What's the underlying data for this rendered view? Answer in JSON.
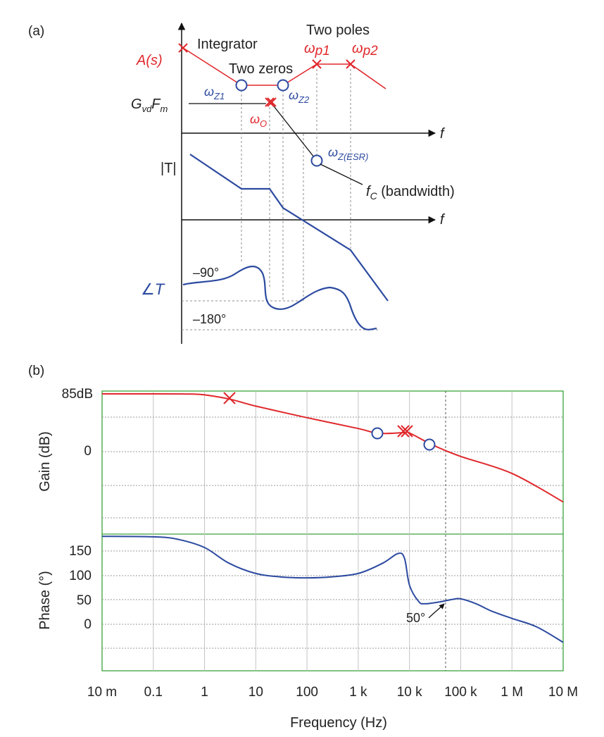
{
  "colors": {
    "red": "#e0282c",
    "blue": "#2c4aa0",
    "axis": "#111111",
    "grid": "#c8c8c8",
    "frame": "#3aa53a",
    "guide": "#888888"
  },
  "part_a": {
    "panel_label": "(a)",
    "a_s_label": "A(s)",
    "integrator_label": "Integrator",
    "two_zeros_label": "Two zeros",
    "two_poles_label": "Two poles",
    "wp1_sym": "ω",
    "wp1_sub": "p1",
    "wp2_sym": "ω",
    "wp2_sub": "p2",
    "wz1_sym": "ω",
    "wz1_sub": "Z1",
    "wz2_sym": "ω",
    "wz2_sub": "Z2",
    "wo_sym": "ω",
    "wo_sub": "O",
    "gvdfm_g": "G",
    "gvdfm_vd": "vd",
    "gvdfm_f": "F",
    "gvdfm_m": "m",
    "wesr_sym": "ω",
    "wesr_sub": "Z(ESR)",
    "fc_f": "f",
    "fc_sub": "C",
    "fc_rest": " (bandwidth)",
    "t_mag_label": "|T|",
    "t_phase_label": "∠T",
    "f_axis_label_1": "f",
    "f_axis_label_2": "f",
    "minus90_label": "–90°",
    "minus180_label": "–180°"
  },
  "part_b": {
    "panel_label": "(b)",
    "gain_axis_label": "Gain (dB)",
    "phase_axis_label": "Phase (°)",
    "x_axis_label": "Frequency (Hz)",
    "x_ticks": [
      "10 m",
      "0.1",
      "1",
      "10",
      "100",
      "1 k",
      "10 k",
      "100 k",
      "1 M",
      "10 M"
    ],
    "gain_ticks": [
      "85dB",
      "0"
    ],
    "phase_ticks": [
      "150",
      "100",
      "50",
      "0"
    ],
    "phase_margin_label": "50°"
  },
  "chart_data": [
    {
      "type": "line",
      "title": "",
      "xlabel": "Frequency (Hz)",
      "ylabel": "Gain (dB)",
      "x_scale": "log",
      "xlim": [
        0.01,
        10000000
      ],
      "series": [
        {
          "x": [
            0.01,
            0.1,
            0.5,
            1,
            3.2,
            10,
            100,
            1000,
            2500,
            8000,
            10000,
            30000,
            100000,
            1000000,
            10000000
          ],
          "values": [
            85,
            85,
            84.8,
            83.5,
            77,
            67,
            50,
            34,
            27,
            28,
            27.5,
            9,
            -7,
            -32,
            -74
          ]
        }
      ]
    },
    {
      "type": "line",
      "title": "",
      "xlabel": "Frequency (Hz)",
      "ylabel": "Phase (°)",
      "x_scale": "log",
      "xlim": [
        0.01,
        10000000
      ],
      "series": [
        {
          "x": [
            0.01,
            0.1,
            0.3,
            1,
            3,
            10,
            30,
            100,
            300,
            1000,
            3000,
            6000,
            8000,
            10000,
            15000,
            20000,
            40000,
            70000,
            100000,
            200000,
            400000,
            1000000,
            3000000,
            10000000
          ],
          "values": [
            180,
            179,
            174,
            157,
            125,
            104,
            97,
            95,
            97,
            104,
            125,
            145,
            135,
            80,
            47,
            42,
            46,
            51,
            52,
            42,
            27,
            12,
            -5,
            -37
          ]
        }
      ],
      "annotations": [
        {
          "x": 60000,
          "label": "50°"
        }
      ]
    }
  ]
}
